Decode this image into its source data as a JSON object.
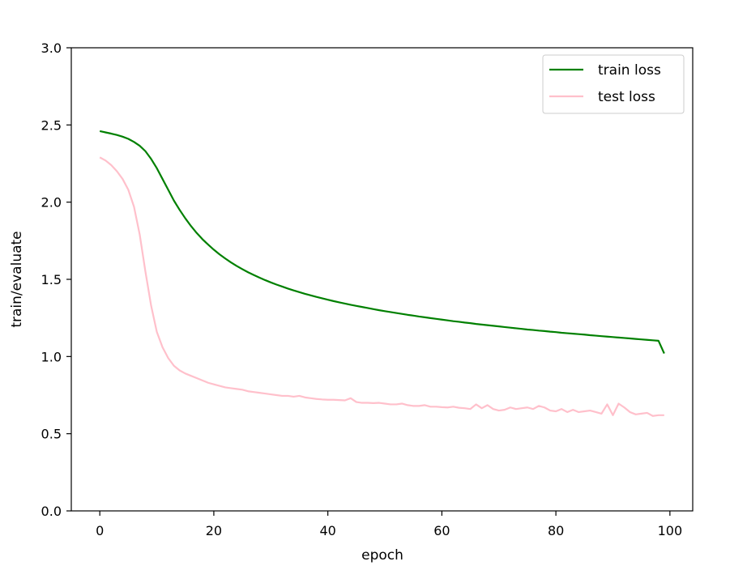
{
  "chart_data": {
    "type": "line",
    "title": "",
    "xlabel": "epoch",
    "ylabel": "train/evaluate",
    "xlim": [
      -5,
      104
    ],
    "ylim": [
      0.0,
      3.0
    ],
    "xticks": [
      0,
      20,
      40,
      60,
      80,
      100
    ],
    "yticks": [
      0.0,
      0.5,
      1.0,
      1.5,
      2.0,
      2.5,
      3.0
    ],
    "xtick_labels": [
      "0",
      "20",
      "40",
      "60",
      "80",
      "100"
    ],
    "ytick_labels": [
      "0.0",
      "0.5",
      "1.0",
      "1.5",
      "2.0",
      "2.5",
      "3.0"
    ],
    "grid": false,
    "legend_position": "top-right",
    "x": [
      0,
      1,
      2,
      3,
      4,
      5,
      6,
      7,
      8,
      9,
      10,
      11,
      12,
      13,
      14,
      15,
      16,
      17,
      18,
      19,
      20,
      21,
      22,
      23,
      24,
      25,
      26,
      27,
      28,
      29,
      30,
      31,
      32,
      33,
      34,
      35,
      36,
      37,
      38,
      39,
      40,
      41,
      42,
      43,
      44,
      45,
      46,
      47,
      48,
      49,
      50,
      51,
      52,
      53,
      54,
      55,
      56,
      57,
      58,
      59,
      60,
      61,
      62,
      63,
      64,
      65,
      66,
      67,
      68,
      69,
      70,
      71,
      72,
      73,
      74,
      75,
      76,
      77,
      78,
      79,
      80,
      81,
      82,
      83,
      84,
      85,
      86,
      87,
      88,
      89,
      90,
      91,
      92,
      93,
      94,
      95,
      96,
      97,
      98,
      99
    ],
    "series": [
      {
        "name": "train loss",
        "color": "#008000",
        "values": [
          2.46,
          2.452,
          2.444,
          2.435,
          2.424,
          2.41,
          2.39,
          2.365,
          2.33,
          2.28,
          2.22,
          2.15,
          2.08,
          2.01,
          1.95,
          1.895,
          1.845,
          1.8,
          1.76,
          1.725,
          1.692,
          1.662,
          1.635,
          1.61,
          1.587,
          1.566,
          1.546,
          1.528,
          1.511,
          1.495,
          1.48,
          1.466,
          1.453,
          1.44,
          1.428,
          1.417,
          1.406,
          1.396,
          1.386,
          1.377,
          1.368,
          1.359,
          1.351,
          1.343,
          1.335,
          1.328,
          1.321,
          1.314,
          1.307,
          1.3,
          1.294,
          1.288,
          1.282,
          1.276,
          1.27,
          1.265,
          1.259,
          1.254,
          1.249,
          1.244,
          1.239,
          1.234,
          1.229,
          1.225,
          1.22,
          1.216,
          1.211,
          1.207,
          1.203,
          1.199,
          1.195,
          1.191,
          1.187,
          1.183,
          1.179,
          1.175,
          1.172,
          1.168,
          1.165,
          1.161,
          1.158,
          1.154,
          1.151,
          1.148,
          1.145,
          1.142,
          1.138,
          1.135,
          1.132,
          1.129,
          1.126,
          1.123,
          1.12,
          1.117,
          1.114,
          1.111,
          1.108,
          1.105,
          1.102,
          1.02
        ]
      },
      {
        "name": "test loss",
        "color": "#ffc0cb",
        "values": [
          2.29,
          2.27,
          2.24,
          2.2,
          2.15,
          2.08,
          1.97,
          1.79,
          1.55,
          1.33,
          1.16,
          1.06,
          0.99,
          0.94,
          0.91,
          0.89,
          0.875,
          0.86,
          0.845,
          0.83,
          0.82,
          0.81,
          0.8,
          0.795,
          0.79,
          0.785,
          0.775,
          0.77,
          0.765,
          0.76,
          0.755,
          0.75,
          0.745,
          0.745,
          0.74,
          0.745,
          0.735,
          0.73,
          0.725,
          0.722,
          0.72,
          0.72,
          0.718,
          0.716,
          0.73,
          0.705,
          0.7,
          0.7,
          0.698,
          0.7,
          0.695,
          0.69,
          0.69,
          0.695,
          0.685,
          0.68,
          0.68,
          0.685,
          0.675,
          0.675,
          0.672,
          0.67,
          0.675,
          0.668,
          0.665,
          0.66,
          0.69,
          0.665,
          0.685,
          0.66,
          0.65,
          0.655,
          0.67,
          0.66,
          0.665,
          0.67,
          0.66,
          0.68,
          0.67,
          0.65,
          0.645,
          0.66,
          0.64,
          0.655,
          0.64,
          0.645,
          0.65,
          0.64,
          0.63,
          0.69,
          0.62,
          0.695,
          0.67,
          0.64,
          0.625,
          0.63,
          0.635,
          0.615,
          0.62,
          0.62
        ]
      }
    ]
  }
}
